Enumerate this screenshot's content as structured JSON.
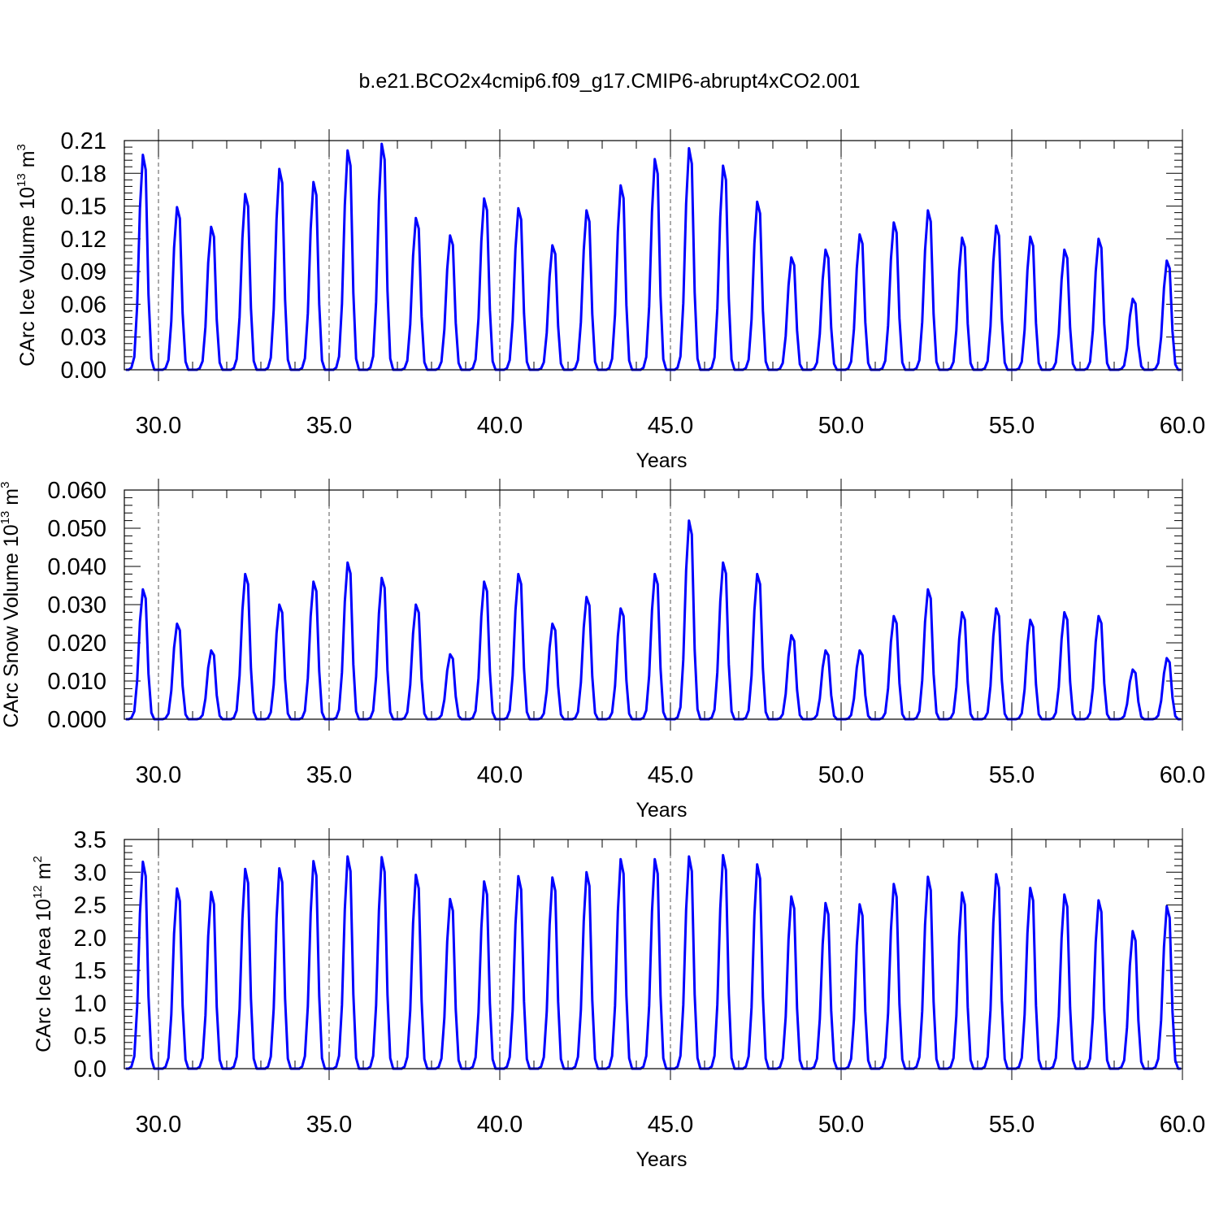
{
  "title": "b.e21.BCO2x4cmip6.f09_g17.CMIP6-abrupt4xCO2.001",
  "colors": {
    "series": "#0000ff",
    "axes": "#000000",
    "refline": "#555555"
  },
  "chart_data": [
    {
      "type": "line",
      "ylabel": {
        "main": "CArc Ice Volume 10",
        "exp": "13",
        "unit": " m",
        "unit_exp": "3"
      },
      "xlabel": "Years",
      "xlim": [
        29.0,
        60.0
      ],
      "ylim": [
        0.0,
        0.21
      ],
      "xticks": [
        "30.0",
        "35.0",
        "40.0",
        "45.0",
        "50.0",
        "55.0",
        "60.0"
      ],
      "yticks": [
        "0.00",
        "0.03",
        "0.06",
        "0.09",
        "0.12",
        "0.15",
        "0.18",
        "0.21"
      ],
      "grid": "dashed verticals at major x ticks",
      "x_start": 29.0417,
      "x_step": 0.08333,
      "annual_peaks_month_index": [
        [
          0.0,
          0.2
        ],
        [
          0.0,
          0.01
        ]
      ],
      "peaks": [
        0.197,
        0.149,
        0.131,
        0.161,
        0.184,
        0.172,
        0.201,
        0.207,
        0.139,
        0.123,
        0.157,
        0.148,
        0.114,
        0.146,
        0.169,
        0.193,
        0.203,
        0.187,
        0.154,
        0.103,
        0.11,
        0.124,
        0.135,
        0.146,
        0.121,
        0.132,
        0.122,
        0.11,
        0.12,
        0.065,
        0.1
      ]
    },
    {
      "type": "line",
      "ylabel": {
        "main": "CArc Snow Volume 10",
        "exp": "13",
        "unit": " m",
        "unit_exp": "3"
      },
      "xlabel": "Years",
      "xlim": [
        29.0,
        60.0
      ],
      "ylim": [
        0.0,
        0.06
      ],
      "xticks": [
        "30.0",
        "35.0",
        "40.0",
        "45.0",
        "50.0",
        "55.0",
        "60.0"
      ],
      "yticks": [
        "0.000",
        "0.010",
        "0.020",
        "0.030",
        "0.040",
        "0.050",
        "0.060"
      ],
      "grid": "dashed verticals at major x ticks",
      "peaks": [
        0.034,
        0.025,
        0.018,
        0.038,
        0.03,
        0.036,
        0.041,
        0.037,
        0.03,
        0.017,
        0.036,
        0.038,
        0.025,
        0.032,
        0.029,
        0.038,
        0.052,
        0.041,
        0.038,
        0.022,
        0.018,
        0.018,
        0.027,
        0.034,
        0.028,
        0.029,
        0.026,
        0.028,
        0.027,
        0.013,
        0.016
      ]
    },
    {
      "type": "line",
      "ylabel": {
        "main": "CArc Ice Area 10",
        "exp": "12",
        "unit": " m",
        "unit_exp": "2"
      },
      "xlabel": "Years",
      "xlim": [
        29.0,
        60.0
      ],
      "ylim": [
        0.0,
        3.5
      ],
      "xticks": [
        "30.0",
        "35.0",
        "40.0",
        "45.0",
        "50.0",
        "55.0",
        "60.0"
      ],
      "yticks": [
        "0.0",
        "0.5",
        "1.0",
        "1.5",
        "2.0",
        "2.5",
        "3.0",
        "3.5"
      ],
      "grid": "dashed verticals at major x ticks",
      "peaks": [
        3.16,
        2.75,
        2.7,
        3.05,
        3.06,
        3.17,
        3.24,
        3.23,
        2.96,
        2.59,
        2.86,
        2.94,
        2.92,
        3.0,
        3.2,
        3.2,
        3.24,
        3.26,
        3.12,
        2.63,
        2.53,
        2.51,
        2.82,
        2.93,
        2.69,
        2.97,
        2.76,
        2.66,
        2.57,
        2.1,
        2.48
      ]
    }
  ]
}
